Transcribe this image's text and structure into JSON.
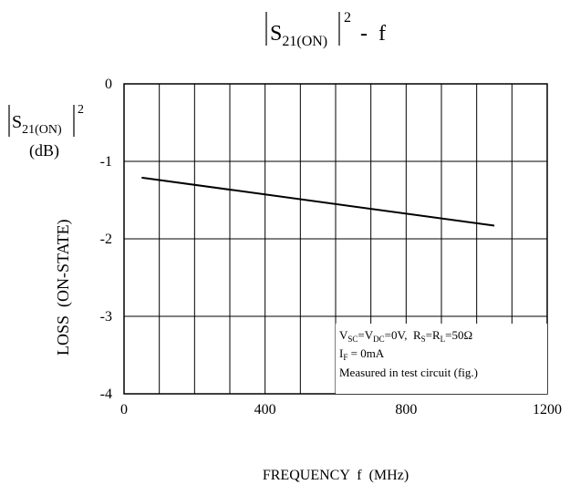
{
  "chart_data": {
    "type": "line",
    "title": {
      "base": "S",
      "subscript": "21(ON)",
      "power": "2",
      "suffix": "-  f"
    },
    "ylabel": {
      "top_base": "S",
      "top_subscript": "21(ON)",
      "top_power": "2",
      "unit": "(dB)",
      "vertical": "LOSS  (ON-STATE)"
    },
    "xlabel": "FREQUENCY  f  (MHz)",
    "xlim": [
      0,
      1200
    ],
    "ylim": [
      -4,
      0
    ],
    "x_ticks": [
      {
        "value": 0,
        "label": "0"
      },
      {
        "value": 400,
        "label": "400"
      },
      {
        "value": 800,
        "label": "800"
      },
      {
        "value": 1200,
        "label": "1200"
      }
    ],
    "y_ticks": [
      {
        "value": 0,
        "label": "0"
      },
      {
        "value": -1,
        "label": "-1"
      },
      {
        "value": -2,
        "label": "-2"
      },
      {
        "value": -3,
        "label": "-3"
      },
      {
        "value": -4,
        "label": "-4"
      }
    ],
    "x_grid_step": 100,
    "y_grid_step": 1,
    "grid": true,
    "series": [
      {
        "points": [
          [
            50,
            -1.21
          ],
          [
            1050,
            -1.83
          ]
        ]
      }
    ],
    "annotation": {
      "line1": {
        "v1": "V",
        "v1_sub": "SC",
        "eq1": "=V",
        "v2_sub": "DC",
        "eq2": "=0V,  R",
        "r1_sub": "S",
        "eq3": "=R",
        "r2_sub": "L",
        "eq4": "=50Ω"
      },
      "line2": {
        "i": "I",
        "i_sub": "F",
        "rest": " = 0mA"
      },
      "line3": "Measured in test circuit (fig.)"
    }
  }
}
